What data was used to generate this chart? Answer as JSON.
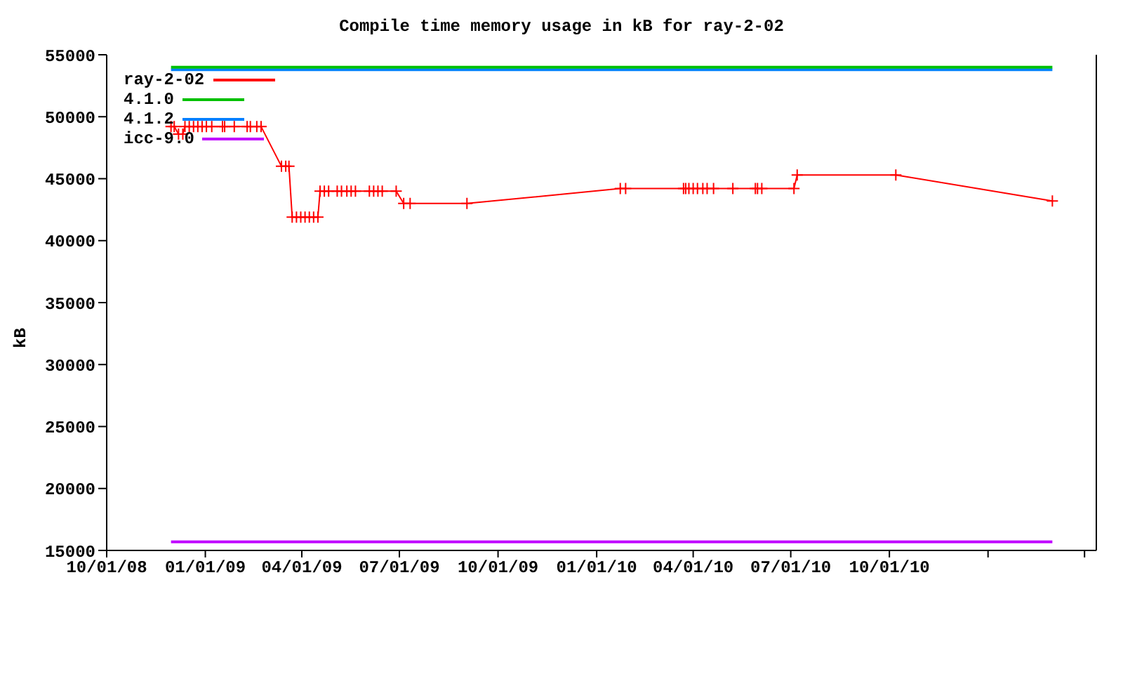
{
  "chart_data": {
    "type": "line",
    "title": "Compile time memory usage in kB for ray-2-02",
    "ylabel": "kB",
    "xlim": [
      "2008-10-01",
      "2011-04-12"
    ],
    "xticks": [
      {
        "value": "2008-10-01",
        "label": "10/01/08"
      },
      {
        "value": "2009-01-01",
        "label": "01/01/09"
      },
      {
        "value": "2009-04-01",
        "label": "04/01/09"
      },
      {
        "value": "2009-07-01",
        "label": "07/01/09"
      },
      {
        "value": "2009-10-01",
        "label": "10/01/09"
      },
      {
        "value": "2010-01-01",
        "label": "01/01/10"
      },
      {
        "value": "2010-04-01",
        "label": "04/01/10"
      },
      {
        "value": "2010-07-01",
        "label": "07/01/10"
      },
      {
        "value": "2010-10-01",
        "label": "10/01/10"
      },
      {
        "value": "2011-01-01",
        "label": null
      },
      {
        "value": "2011-04-01",
        "label": null
      }
    ],
    "ylim": [
      15000,
      55000
    ],
    "yticks": [
      15000,
      20000,
      25000,
      30000,
      35000,
      40000,
      45000,
      50000,
      55000
    ],
    "grid": false,
    "legend": "top left",
    "series": [
      {
        "name": "ray-2-02",
        "color": "#ff0000",
        "marker": "cross",
        "x": [
          "2008-11-30",
          "2008-12-03",
          "2008-12-07",
          "2008-12-11",
          "2008-12-13",
          "2008-12-17",
          "2008-12-21",
          "2008-12-25",
          "2008-12-29",
          "2009-01-02",
          "2009-01-07",
          "2009-01-17",
          "2009-01-19",
          "2009-01-28",
          "2009-02-09",
          "2009-02-12",
          "2009-02-18",
          "2009-02-22",
          "2009-03-13",
          "2009-03-17",
          "2009-03-20",
          "2009-03-23",
          "2009-03-27",
          "2009-03-31",
          "2009-04-04",
          "2009-04-08",
          "2009-04-12",
          "2009-04-16",
          "2009-04-18",
          "2009-04-22",
          "2009-04-26",
          "2009-05-04",
          "2009-05-08",
          "2009-05-13",
          "2009-05-17",
          "2009-05-21",
          "2009-06-03",
          "2009-06-07",
          "2009-06-11",
          "2009-06-15",
          "2009-06-28",
          "2009-07-05",
          "2009-07-11",
          "2009-09-02",
          "2010-01-23",
          "2010-01-28",
          "2010-03-23",
          "2010-03-25",
          "2010-03-28",
          "2010-04-01",
          "2010-04-05",
          "2010-04-10",
          "2010-04-14",
          "2010-04-20",
          "2010-05-08",
          "2010-05-29",
          "2010-05-31",
          "2010-06-04",
          "2010-07-04",
          "2010-07-07",
          "2010-10-07",
          "2011-03-02"
        ],
        "values": [
          49200,
          49200,
          48600,
          48600,
          49200,
          49200,
          49200,
          49200,
          49200,
          49200,
          49200,
          49200,
          49200,
          49200,
          49200,
          49200,
          49200,
          49200,
          46000,
          46000,
          46000,
          41900,
          41900,
          41900,
          41900,
          41900,
          41900,
          41900,
          44000,
          44000,
          44000,
          44000,
          44000,
          44000,
          44000,
          44000,
          44000,
          44000,
          44000,
          44000,
          44000,
          43000,
          43000,
          43000,
          44200,
          44200,
          44200,
          44200,
          44200,
          44200,
          44200,
          44200,
          44200,
          44200,
          44200,
          44200,
          44200,
          44200,
          44200,
          45300,
          45300,
          43200
        ]
      },
      {
        "name": "4.1.0",
        "color": "#00c000",
        "marker": "none",
        "x": [
          "2008-11-30",
          "2011-03-02"
        ],
        "values": [
          54000,
          54000
        ]
      },
      {
        "name": "4.1.2",
        "color": "#0080ff",
        "marker": "none",
        "x": [
          "2008-11-30",
          "2011-03-02"
        ],
        "values": [
          53800,
          53800
        ]
      },
      {
        "name": "icc-9.0",
        "color": "#c000ff",
        "marker": "none",
        "x": [
          "2008-11-30",
          "2011-03-02"
        ],
        "values": [
          15700,
          15700
        ]
      }
    ]
  }
}
